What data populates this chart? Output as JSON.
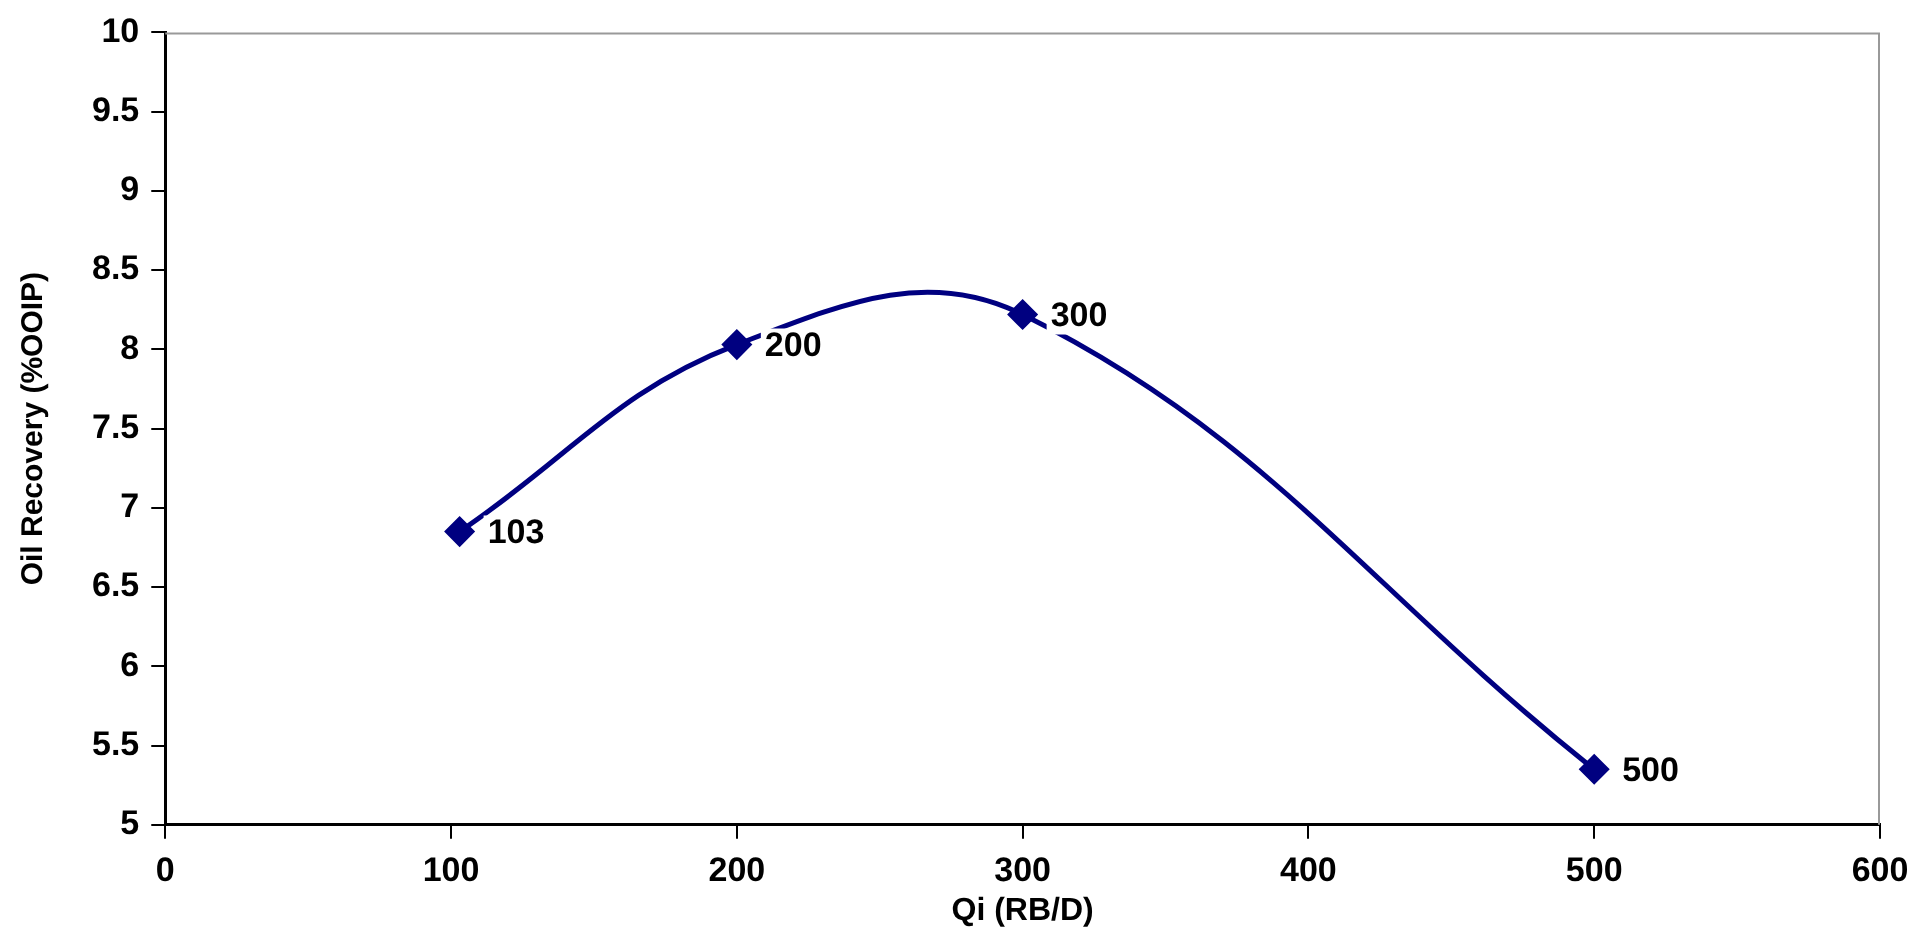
{
  "chart_data": {
    "type": "line",
    "xlabel": "Qi (RB/D)",
    "ylabel": "Oil Recovery (%OOIP)",
    "x": [
      103,
      200,
      300,
      500
    ],
    "series": [
      {
        "color": "#000080",
        "values": [
          6.85,
          8.03,
          8.22,
          5.35
        ]
      }
    ],
    "annotations": [
      {
        "text": "103",
        "x": 103,
        "y": 6.85
      },
      {
        "text": "200",
        "x": 200,
        "y": 8.03
      },
      {
        "text": "300",
        "x": 300,
        "y": 8.22
      },
      {
        "text": "500",
        "x": 500,
        "y": 5.35
      }
    ],
    "xlim": [
      0,
      600
    ],
    "xticks": [
      0,
      100,
      200,
      300,
      400,
      500,
      600
    ],
    "ylim": [
      5,
      10
    ],
    "yticks": [
      5,
      5.5,
      6,
      6.5,
      7,
      7.5,
      8,
      8.5,
      9,
      9.5,
      10
    ],
    "grid": false,
    "legend": false,
    "marker": "diamond",
    "line_style": "solid"
  }
}
